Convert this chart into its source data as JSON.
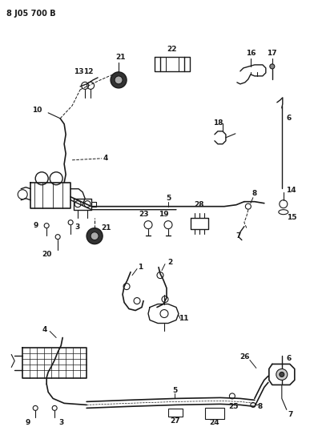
{
  "title": "8 J05 700 B",
  "bg_color": "#ffffff",
  "line_color": "#1a1a1a",
  "figsize": [
    3.97,
    5.33
  ],
  "dpi": 100
}
